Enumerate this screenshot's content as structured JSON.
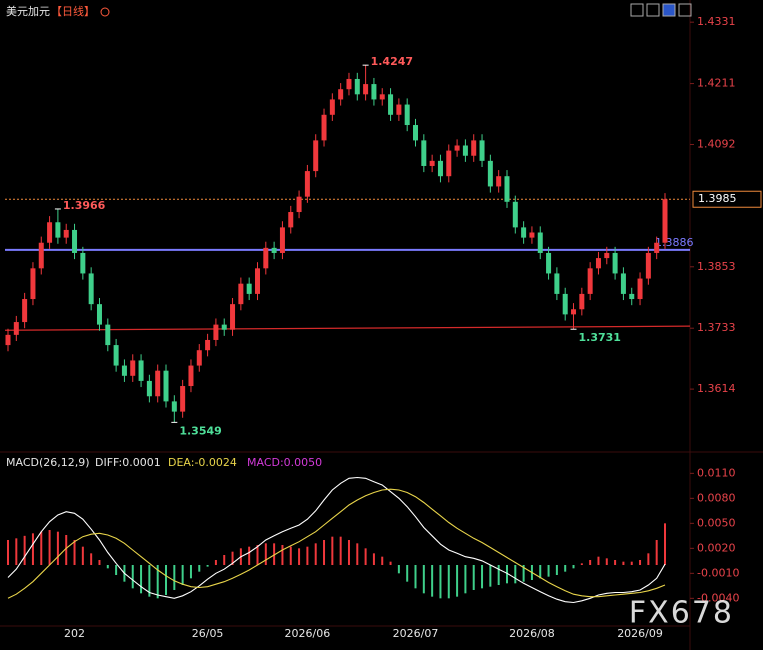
{
  "chart_data": {
    "type": "candlestick",
    "title": "美元加元",
    "period": "【日线】",
    "categories": [
      null,
      null,
      null,
      null,
      null,
      null,
      null,
      null,
      "202",
      null,
      null,
      null,
      null,
      null,
      null,
      null,
      null,
      null,
      null,
      null,
      null,
      null,
      null,
      null,
      "26/05",
      null,
      null,
      null,
      null,
      null,
      null,
      null,
      null,
      null,
      null,
      null,
      "2026/06",
      null,
      null,
      null,
      null,
      null,
      null,
      null,
      null,
      null,
      null,
      null,
      null,
      "2026/07",
      null,
      null,
      null,
      null,
      null,
      null,
      null,
      null,
      null,
      null,
      null,
      null,
      null,
      "2026/08",
      null,
      null,
      null,
      null,
      null,
      null,
      null,
      null,
      null,
      null,
      null,
      null,
      "2026/09",
      null,
      null,
      null
    ],
    "open": [
      1.37,
      1.372,
      1.3745,
      1.379,
      1.385,
      1.39,
      1.394,
      1.391,
      1.3925,
      1.388,
      1.384,
      1.378,
      1.374,
      1.37,
      1.366,
      1.364,
      1.367,
      1.363,
      1.36,
      1.365,
      1.359,
      1.357,
      1.362,
      1.366,
      1.369,
      1.371,
      1.374,
      1.373,
      1.378,
      1.382,
      1.38,
      1.385,
      1.389,
      1.388,
      1.393,
      1.396,
      1.399,
      1.404,
      1.41,
      1.415,
      1.418,
      1.42,
      1.422,
      1.419,
      1.421,
      1.418,
      1.419,
      1.415,
      1.417,
      1.413,
      1.41,
      1.405,
      1.406,
      1.403,
      1.408,
      1.409,
      1.407,
      1.41,
      1.406,
      1.401,
      1.403,
      1.398,
      1.393,
      1.391,
      1.392,
      1.388,
      1.384,
      1.38,
      1.376,
      1.377,
      1.38,
      1.385,
      1.387,
      1.388,
      1.384,
      1.38,
      1.379,
      1.383,
      1.388,
      1.39
    ],
    "high": [
      1.3732,
      1.3757,
      1.3802,
      1.3862,
      1.3912,
      1.3952,
      1.3966,
      1.3937,
      1.3937,
      1.3892,
      1.3852,
      1.3792,
      1.3752,
      1.3712,
      1.3672,
      1.3682,
      1.3682,
      1.3642,
      1.3662,
      1.3662,
      1.3602,
      1.3632,
      1.3672,
      1.3702,
      1.3722,
      1.3752,
      1.3752,
      1.3792,
      1.3832,
      1.3832,
      1.3862,
      1.3902,
      1.3902,
      1.3942,
      1.3972,
      1.4002,
      1.4052,
      1.4112,
      1.4162,
      1.4192,
      1.4212,
      1.4232,
      1.4232,
      1.4247,
      1.4222,
      1.4202,
      1.4202,
      1.4182,
      1.4182,
      1.4142,
      1.4112,
      1.4072,
      1.4072,
      1.4092,
      1.4102,
      1.4102,
      1.4112,
      1.4112,
      1.4072,
      1.4042,
      1.4042,
      1.3992,
      1.3942,
      1.3932,
      1.3932,
      1.3892,
      1.3852,
      1.3812,
      1.3782,
      1.3812,
      1.3862,
      1.3882,
      1.3892,
      1.3892,
      1.3852,
      1.3812,
      1.3842,
      1.3892,
      1.3912,
      1.3997
    ],
    "low": [
      1.3688,
      1.3708,
      1.3733,
      1.3778,
      1.3838,
      1.3888,
      1.3898,
      1.3898,
      1.3868,
      1.3828,
      1.3768,
      1.3728,
      1.3688,
      1.3648,
      1.3628,
      1.3628,
      1.3618,
      1.3588,
      1.3588,
      1.3578,
      1.3549,
      1.3558,
      1.3608,
      1.3648,
      1.3678,
      1.3698,
      1.3718,
      1.3718,
      1.3768,
      1.3788,
      1.3788,
      1.3838,
      1.3868,
      1.3868,
      1.3918,
      1.3948,
      1.3978,
      1.4028,
      1.4088,
      1.4138,
      1.4168,
      1.4188,
      1.4178,
      1.4178,
      1.4168,
      1.4168,
      1.4138,
      1.4138,
      1.4118,
      1.4088,
      1.4038,
      1.4038,
      1.4018,
      1.4018,
      1.4068,
      1.4058,
      1.4058,
      1.4048,
      1.3998,
      1.3998,
      1.3968,
      1.3918,
      1.3898,
      1.3898,
      1.3868,
      1.3828,
      1.3788,
      1.3748,
      1.3731,
      1.3758,
      1.3788,
      1.3838,
      1.3858,
      1.3828,
      1.3788,
      1.3778,
      1.3778,
      1.3818,
      1.3868,
      1.3888
    ],
    "close": [
      1.372,
      1.3745,
      1.379,
      1.385,
      1.39,
      1.394,
      1.391,
      1.3925,
      1.388,
      1.384,
      1.378,
      1.374,
      1.37,
      1.366,
      1.364,
      1.367,
      1.363,
      1.36,
      1.365,
      1.359,
      1.357,
      1.362,
      1.366,
      1.369,
      1.371,
      1.374,
      1.373,
      1.378,
      1.382,
      1.38,
      1.385,
      1.389,
      1.388,
      1.393,
      1.396,
      1.399,
      1.404,
      1.41,
      1.415,
      1.418,
      1.42,
      1.422,
      1.419,
      1.421,
      1.418,
      1.419,
      1.415,
      1.417,
      1.413,
      1.41,
      1.405,
      1.406,
      1.403,
      1.408,
      1.409,
      1.407,
      1.41,
      1.406,
      1.401,
      1.403,
      1.398,
      1.393,
      1.391,
      1.392,
      1.388,
      1.384,
      1.38,
      1.376,
      1.377,
      1.38,
      1.385,
      1.387,
      1.388,
      1.384,
      1.38,
      1.379,
      1.383,
      1.388,
      1.39,
      1.3985
    ],
    "up_color": "#f0383c",
    "down_color": "#3fd08b",
    "ylim": [
      1.3495,
      1.4345
    ],
    "yticks": [
      1.3614,
      1.3733,
      1.3853,
      1.4092,
      1.4211,
      1.4331
    ],
    "annotations": [
      {
        "x": 6,
        "value": 1.3966,
        "position": "above",
        "color": "#ff5a5a"
      },
      {
        "x": 20,
        "value": 1.3549,
        "position": "below",
        "color": "#4fe09a"
      },
      {
        "x": 43,
        "value": 1.4247,
        "position": "above",
        "color": "#ff5a5a"
      },
      {
        "x": 68,
        "value": 1.3731,
        "position": "below",
        "color": "#4fe09a"
      }
    ],
    "level_line": {
      "value": 1.3886,
      "color": "#7b7bff"
    },
    "trend_line": {
      "values": [
        1.3729,
        1.3737
      ],
      "color": "#d42a2a"
    },
    "last_price": {
      "value": 1.3985,
      "color": "#f08a3c"
    },
    "macd": {
      "type": "macd",
      "label": "MACD(26,12,9)",
      "diff_label": "DIFF:0.0001",
      "dea_label": "DEA:-0.0024",
      "macd_label": "MACD:0.0050",
      "ylim": [
        -0.0072,
        0.0126
      ],
      "yticks": [
        {
          "value": 0.011,
          "label": "0.0110"
        },
        {
          "value": 0.008,
          "label": "0.0080"
        },
        {
          "value": 0.005,
          "label": "0.0050"
        },
        {
          "value": 0.002,
          "label": "0.0020"
        },
        {
          "value": -0.001,
          "label": "-0.0010"
        },
        {
          "value": -0.004,
          "label": "-0.0040"
        }
      ],
      "series": [
        {
          "name": "DIFF",
          "color": "#ffffff",
          "values": [
            -0.0015,
            -0.0005,
            0.001,
            0.0025,
            0.004,
            0.0052,
            0.006,
            0.0064,
            0.0062,
            0.0055,
            0.0043,
            0.003,
            0.0015,
            0.0002,
            -0.001,
            -0.0018,
            -0.0026,
            -0.0033,
            -0.0036,
            -0.0038,
            -0.004,
            -0.0037,
            -0.0032,
            -0.0025,
            -0.0017,
            -0.001,
            -0.0005,
            0.0002,
            0.001,
            0.0015,
            0.0022,
            0.003,
            0.0035,
            0.004,
            0.0044,
            0.0048,
            0.0055,
            0.0065,
            0.0078,
            0.009,
            0.0098,
            0.0104,
            0.0105,
            0.0104,
            0.01,
            0.0096,
            0.0088,
            0.008,
            0.007,
            0.0058,
            0.0045,
            0.0035,
            0.0025,
            0.0018,
            0.0014,
            0.001,
            0.0008,
            0.0005,
            0.0,
            -0.0005,
            -0.001,
            -0.0016,
            -0.0022,
            -0.0027,
            -0.0032,
            -0.0037,
            -0.0041,
            -0.0044,
            -0.0045,
            -0.0043,
            -0.004,
            -0.0036,
            -0.0034,
            -0.0033,
            -0.0033,
            -0.0032,
            -0.003,
            -0.0024,
            -0.0016,
            0.0001
          ]
        },
        {
          "name": "DEA",
          "color": "#e8d44a",
          "values": [
            -0.004,
            -0.0035,
            -0.0028,
            -0.002,
            -0.001,
            0.0,
            0.001,
            0.002,
            0.0028,
            0.0034,
            0.0037,
            0.0038,
            0.0036,
            0.0032,
            0.0026,
            0.0018,
            0.001,
            0.0002,
            -0.0006,
            -0.0013,
            -0.0019,
            -0.0023,
            -0.0026,
            -0.0027,
            -0.0026,
            -0.0023,
            -0.002,
            -0.0016,
            -0.0011,
            -0.0006,
            0.0,
            0.0006,
            0.0012,
            0.0018,
            0.0023,
            0.0028,
            0.0034,
            0.004,
            0.0048,
            0.0056,
            0.0064,
            0.0072,
            0.0078,
            0.0083,
            0.0087,
            0.009,
            0.0091,
            0.009,
            0.0087,
            0.0082,
            0.0075,
            0.0067,
            0.0059,
            0.0051,
            0.0044,
            0.0038,
            0.0032,
            0.0027,
            0.0021,
            0.0015,
            0.0009,
            0.0003,
            -0.0003,
            -0.0009,
            -0.0015,
            -0.0021,
            -0.0026,
            -0.0031,
            -0.0035,
            -0.0037,
            -0.0038,
            -0.0038,
            -0.0037,
            -0.0036,
            -0.0035,
            -0.0034,
            -0.0033,
            -0.0031,
            -0.0028,
            -0.0024
          ]
        }
      ],
      "histogram": {
        "name": "MACD",
        "color": "#d23ad8",
        "up_color": "#f0383c",
        "down_color": "#3fd08b",
        "values": [
          0.003,
          0.0032,
          0.0035,
          0.0038,
          0.004,
          0.0042,
          0.004,
          0.0036,
          0.003,
          0.0022,
          0.0014,
          0.0006,
          -0.0004,
          -0.0012,
          -0.002,
          -0.0028,
          -0.0034,
          -0.0038,
          -0.004,
          -0.0036,
          -0.003,
          -0.0024,
          -0.0016,
          -0.0008,
          -0.0002,
          0.0006,
          0.0012,
          0.0016,
          0.002,
          0.0022,
          0.0024,
          0.0026,
          0.0026,
          0.0024,
          0.0022,
          0.002,
          0.0022,
          0.0026,
          0.003,
          0.0034,
          0.0034,
          0.003,
          0.0026,
          0.002,
          0.0014,
          0.001,
          0.0004,
          -0.001,
          -0.002,
          -0.0028,
          -0.0034,
          -0.0038,
          -0.004,
          -0.004,
          -0.0038,
          -0.0034,
          -0.003,
          -0.0028,
          -0.0026,
          -0.0024,
          -0.0022,
          -0.0022,
          -0.002,
          -0.0018,
          -0.0016,
          -0.0014,
          -0.0012,
          -0.0008,
          -0.0004,
          0.0002,
          0.0006,
          0.001,
          0.0008,
          0.0006,
          0.0004,
          0.0004,
          0.0006,
          0.0014,
          0.003,
          0.005
        ]
      }
    },
    "watermark": "FX678"
  }
}
